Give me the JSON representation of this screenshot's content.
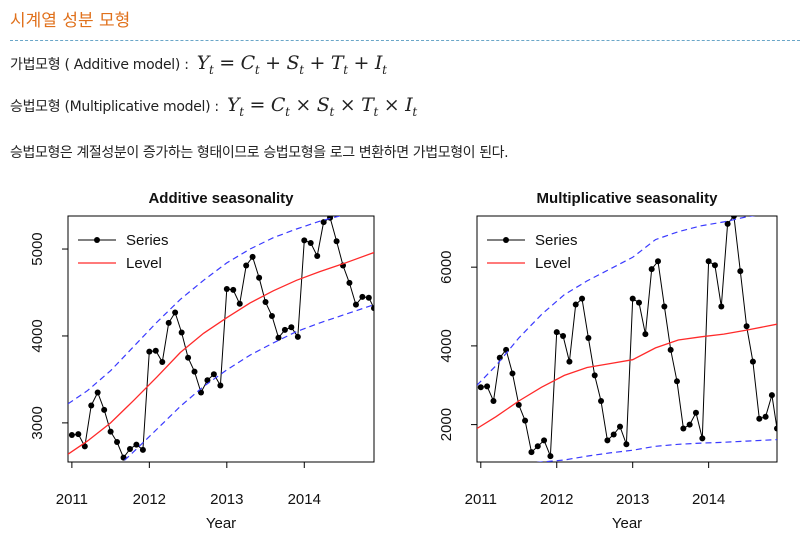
{
  "header": {
    "title": "시계열 성분 모형",
    "additive_label": "가법모형 ( Additive model) : ",
    "additive_formula": "Yt = Ct + St + Tt + It",
    "multiplicative_label": "승법모형 (Multiplicative model) : ",
    "multiplicative_formula": "Yt = Ct × St × Tt × It",
    "note": "승법모형은 계절성분이 증가하는 형태이므로 승법모형을 로그 변환하면 가법모형이 된다."
  },
  "colors": {
    "series": "#000000",
    "level": "#ff2a2a",
    "bound": "#3a3aff",
    "title": "#e0711c"
  },
  "chart_data": [
    {
      "type": "line",
      "title": "Additive seasonality",
      "xlabel": "Year",
      "ylabel": "",
      "xlim": [
        2010.95,
        2014.9
      ],
      "ylim": [
        2550,
        5380
      ],
      "xticks": [
        2011,
        2012,
        2013,
        2014
      ],
      "yticks": [
        3000,
        4000,
        5000
      ],
      "legend": {
        "position": "top-left",
        "entries": [
          "Series",
          "Level"
        ]
      },
      "series": [
        {
          "name": "Series",
          "style": "line-points",
          "x": [
            2011.0,
            2011.083,
            2011.167,
            2011.25,
            2011.333,
            2011.417,
            2011.5,
            2011.583,
            2011.667,
            2011.75,
            2011.833,
            2011.917,
            2012.0,
            2012.083,
            2012.167,
            2012.25,
            2012.333,
            2012.417,
            2012.5,
            2012.583,
            2012.667,
            2012.75,
            2012.833,
            2012.917,
            2013.0,
            2013.083,
            2013.167,
            2013.25,
            2013.333,
            2013.417,
            2013.5,
            2013.583,
            2013.667,
            2013.75,
            2013.833,
            2013.917,
            2014.0,
            2014.083,
            2014.167,
            2014.25,
            2014.333,
            2014.417,
            2014.5,
            2014.583,
            2014.667,
            2014.75,
            2014.833,
            2014.9
          ],
          "y": [
            2860,
            2870,
            2730,
            3200,
            3350,
            3150,
            2900,
            2780,
            2600,
            2700,
            2750,
            2690,
            3820,
            3830,
            3700,
            4150,
            4270,
            4040,
            3750,
            3590,
            3350,
            3490,
            3560,
            3430,
            4540,
            4530,
            4370,
            4810,
            4910,
            4670,
            4390,
            4230,
            3980,
            4070,
            4100,
            3990,
            5100,
            5070,
            4920,
            5310,
            5360,
            5090,
            4810,
            4610,
            4360,
            4450,
            4440,
            4320
          ]
        },
        {
          "name": "Level",
          "style": "line",
          "x": [
            2010.95,
            2011.2,
            2011.5,
            2011.8,
            2012.1,
            2012.4,
            2012.7,
            2013.0,
            2013.3,
            2013.6,
            2013.9,
            2014.2,
            2014.5,
            2014.9
          ],
          "y": [
            2640,
            2790,
            3000,
            3260,
            3530,
            3810,
            4030,
            4210,
            4380,
            4520,
            4640,
            4740,
            4830,
            4960
          ]
        },
        {
          "name": "",
          "style": "dashed",
          "x": [
            2010.95,
            2011.2,
            2011.5,
            2011.8,
            2012.1,
            2012.4,
            2012.7,
            2013.0,
            2013.3,
            2013.6,
            2013.9,
            2014.2,
            2014.5,
            2014.9
          ],
          "y": [
            3220,
            3370,
            3600,
            3880,
            4160,
            4420,
            4640,
            4840,
            5000,
            5130,
            5230,
            5320,
            5390,
            5450
          ]
        },
        {
          "name": "",
          "style": "dashed",
          "x": [
            2010.95,
            2011.2,
            2011.5,
            2011.8,
            2012.1,
            2012.4,
            2012.7,
            2013.0,
            2013.3,
            2013.6,
            2013.9,
            2014.2,
            2014.5,
            2014.9
          ],
          "y": [
            2100,
            2250,
            2420,
            2670,
            2930,
            3190,
            3420,
            3610,
            3780,
            3920,
            4050,
            4150,
            4240,
            4360
          ]
        }
      ]
    },
    {
      "type": "line",
      "title": "Multiplicative seasonality",
      "xlabel": "Year",
      "ylabel": "",
      "xlim": [
        2010.95,
        2014.9
      ],
      "ylim": [
        1050,
        7300
      ],
      "xticks": [
        2011,
        2012,
        2013,
        2014
      ],
      "yticks": [
        2000,
        4000,
        6000
      ],
      "legend": {
        "position": "top-left",
        "entries": [
          "Series",
          "Level"
        ]
      },
      "series": [
        {
          "name": "Series",
          "style": "line-points",
          "x": [
            2011.0,
            2011.083,
            2011.167,
            2011.25,
            2011.333,
            2011.417,
            2011.5,
            2011.583,
            2011.667,
            2011.75,
            2011.833,
            2011.917,
            2012.0,
            2012.083,
            2012.167,
            2012.25,
            2012.333,
            2012.417,
            2012.5,
            2012.583,
            2012.667,
            2012.75,
            2012.833,
            2012.917,
            2013.0,
            2013.083,
            2013.167,
            2013.25,
            2013.333,
            2013.417,
            2013.5,
            2013.583,
            2013.667,
            2013.75,
            2013.833,
            2013.917,
            2014.0,
            2014.083,
            2014.167,
            2014.25,
            2014.333,
            2014.417,
            2014.5,
            2014.583,
            2014.667,
            2014.75,
            2014.833,
            2014.9
          ],
          "y": [
            2950,
            2970,
            2600,
            3700,
            3900,
            3300,
            2500,
            2100,
            1300,
            1450,
            1600,
            1200,
            4350,
            4250,
            3600,
            5050,
            5200,
            4200,
            3250,
            2600,
            1600,
            1750,
            1950,
            1500,
            5200,
            5100,
            4300,
            5950,
            6150,
            5000,
            3900,
            3100,
            1900,
            2000,
            2300,
            1650,
            6150,
            6050,
            5000,
            7100,
            7300,
            5900,
            4500,
            3600,
            2150,
            2200,
            2750,
            1900
          ]
        },
        {
          "name": "Level",
          "style": "line",
          "x": [
            2010.95,
            2011.2,
            2011.5,
            2011.8,
            2012.1,
            2012.4,
            2012.7,
            2013.0,
            2013.3,
            2013.6,
            2013.9,
            2014.2,
            2014.5,
            2014.9
          ],
          "y": [
            1900,
            2200,
            2600,
            2950,
            3250,
            3450,
            3550,
            3650,
            3950,
            4150,
            4230,
            4300,
            4400,
            4550
          ]
        },
        {
          "name": "",
          "style": "dashed",
          "x": [
            2010.95,
            2011.2,
            2011.5,
            2011.8,
            2012.1,
            2012.4,
            2012.7,
            2013.0,
            2013.3,
            2013.6,
            2013.9,
            2014.2,
            2014.5,
            2014.9
          ],
          "y": [
            3000,
            3500,
            4200,
            4800,
            5300,
            5650,
            5950,
            6250,
            6700,
            6900,
            7050,
            7150,
            7280,
            7400
          ]
        },
        {
          "name": "",
          "style": "dashed",
          "x": [
            2010.95,
            2011.2,
            2011.5,
            2011.8,
            2012.1,
            2012.4,
            2012.7,
            2013.0,
            2013.3,
            2013.6,
            2013.9,
            2014.2,
            2014.5,
            2014.9
          ],
          "y": [
            900,
            950,
            1000,
            1050,
            1100,
            1200,
            1280,
            1350,
            1450,
            1500,
            1530,
            1550,
            1580,
            1620
          ]
        }
      ]
    }
  ]
}
